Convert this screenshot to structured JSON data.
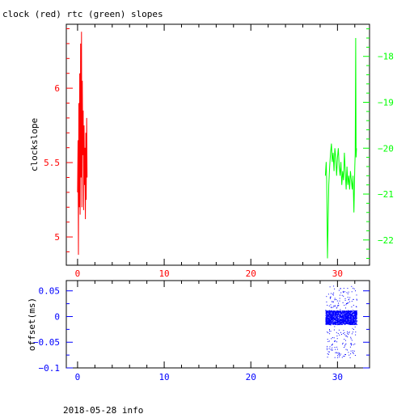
{
  "title": "clock (red) rtc (green) slopes",
  "footer": "2018-05-28 info",
  "colors": {
    "clock": "#ff0000",
    "rtc": "#00ff00",
    "offset": "#0000ff",
    "axes": "#000000",
    "background": "#ffffff"
  },
  "chart_data": [
    {
      "type": "line",
      "ylabel": "clockslope",
      "ylabel_right": "",
      "xlim": [
        -1.3,
        33.7
      ],
      "ylim": [
        4.81,
        6.43
      ],
      "ylim_right": [
        -22.55,
        -17.3
      ],
      "x_ticks": [
        0,
        10,
        20,
        30
      ],
      "y_ticks": [
        5,
        5.5,
        6
      ],
      "y_ticks_right": [
        -22,
        -21,
        -20,
        -19,
        -18
      ],
      "grid": false,
      "series": [
        {
          "axis": "left",
          "color": "#ff0000",
          "x": [
            0.0,
            0.05,
            0.1,
            0.15,
            0.2,
            0.25,
            0.3,
            0.35,
            0.4,
            0.45,
            0.5,
            0.55,
            0.6,
            0.65,
            0.7,
            0.75,
            0.8,
            0.85,
            0.9,
            0.95,
            1.0,
            1.05,
            1.1
          ],
          "values": [
            5.3,
            5.65,
            4.88,
            5.9,
            5.2,
            6.1,
            5.15,
            6.3,
            5.4,
            6.38,
            5.2,
            6.05,
            5.55,
            5.85,
            5.18,
            5.75,
            5.35,
            5.6,
            5.12,
            5.7,
            5.25,
            5.8,
            5.4
          ]
        },
        {
          "axis": "right",
          "color": "#00ff00",
          "x": [
            28.6,
            28.7,
            28.75,
            28.85,
            29.0,
            29.1,
            29.2,
            29.3,
            29.4,
            29.5,
            29.6,
            29.7,
            29.8,
            29.9,
            30.0,
            30.1,
            30.2,
            30.3,
            30.4,
            30.5,
            30.6,
            30.7,
            30.8,
            30.9,
            31.0,
            31.1,
            31.2,
            31.3,
            31.4,
            31.5,
            31.6,
            31.7,
            31.8,
            31.9,
            32.0,
            32.05,
            32.1,
            32.15,
            32.2
          ],
          "values": [
            -20.6,
            -20.3,
            -20.7,
            -22.4,
            -20.8,
            -20.4,
            -20.1,
            -19.9,
            -20.3,
            -20.1,
            -20.5,
            -20.0,
            -20.2,
            -20.6,
            -20.2,
            -20.0,
            -20.4,
            -20.6,
            -20.3,
            -20.8,
            -20.5,
            -20.7,
            -20.1,
            -20.5,
            -20.9,
            -20.4,
            -20.8,
            -20.6,
            -20.9,
            -20.5,
            -20.7,
            -20.9,
            -20.6,
            -21.4,
            -20.4,
            -20.1,
            -17.6,
            -20.2,
            -20.0
          ]
        }
      ]
    },
    {
      "type": "scatter",
      "ylabel": "offset(ms)",
      "xlim": [
        -1.3,
        33.7
      ],
      "ylim": [
        -0.1,
        0.07
      ],
      "x_ticks": [
        0,
        10,
        20,
        30
      ],
      "y_ticks": [
        0.05,
        0,
        -0.05,
        -0.1
      ],
      "grid": false,
      "series": [
        {
          "color": "#0000ff",
          "x_range": [
            28.6,
            32.2
          ],
          "band": [
            -0.015,
            0.012
          ],
          "outlier_range": [
            -0.08,
            0.06
          ]
        }
      ]
    }
  ]
}
